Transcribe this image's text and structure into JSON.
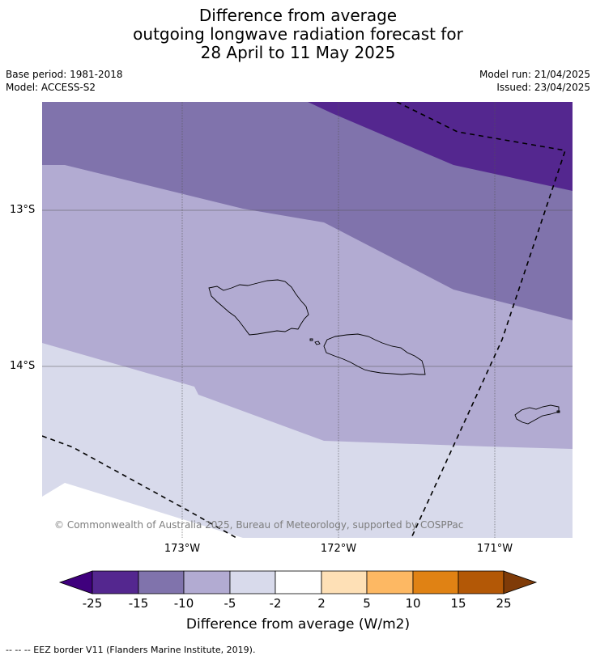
{
  "title": {
    "line1": "Difference from average",
    "line2": "outgoing longwave radiation forecast for",
    "line3": "28 April to 11 May 2025"
  },
  "meta": {
    "base_period": "Base period: 1981-2018",
    "model": "Model: ACCESS-S2",
    "model_run": "Model run: 21/04/2025",
    "issued": "Issued: 23/04/2025"
  },
  "map": {
    "lon_labels": [
      "173°W",
      "172°W",
      "171°W"
    ],
    "lat_labels": [
      "13°S",
      "14°S"
    ],
    "copyright": "© Commonwealth of Australia 2025, Bureau of Meteorology, supported by COSPPac",
    "colors": {
      "lt_m25": "#3f007d",
      "m25_m15": "#54278f",
      "m15_m10": "#8073ac",
      "m10_m5": "#b2abd2",
      "m5_m2": "#d8daeb",
      "m2_2": "#ffffff",
      "p2_5": "#fee0b6",
      "p5_10": "#fdb863",
      "p10_15": "#e08214",
      "p15_25": "#b35806",
      "gt_25": "#7f3b08"
    }
  },
  "colorbar": {
    "ticks": [
      "-25",
      "-15",
      "-10",
      "-5",
      "-2",
      "2",
      "5",
      "10",
      "15",
      "25"
    ],
    "title": "Difference from average (W/m2)"
  },
  "footnote": "--  --  -- EEZ border V11 (Flanders Marine Institute, 2019)."
}
